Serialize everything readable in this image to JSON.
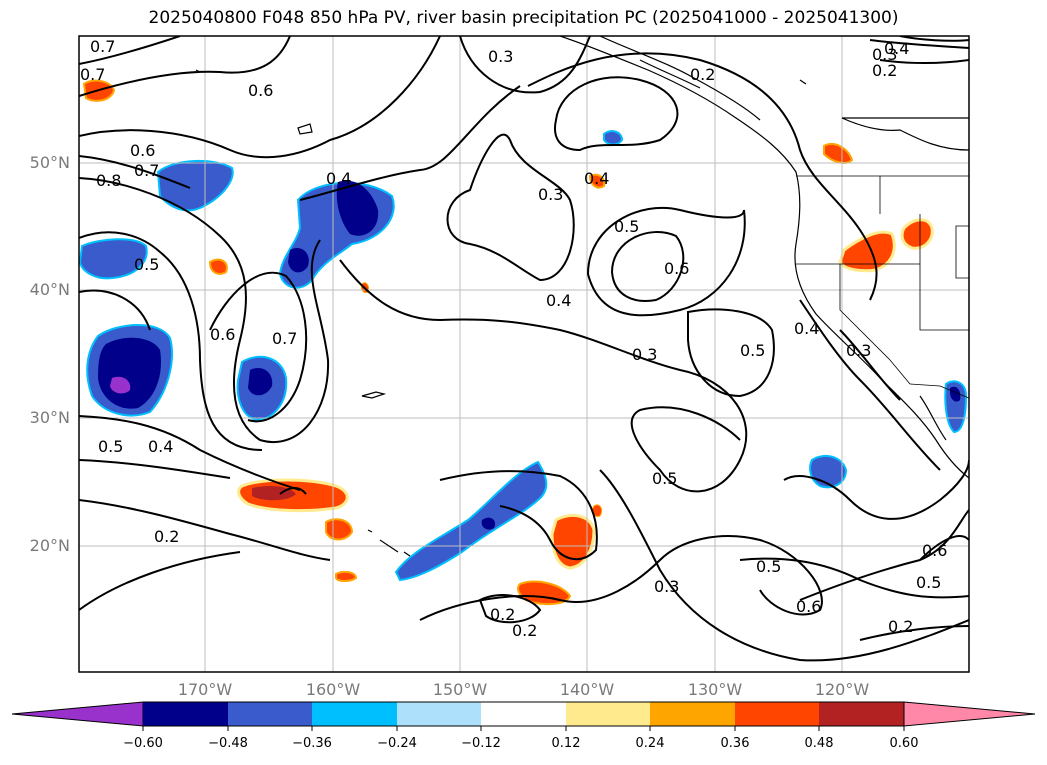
{
  "title": "2025040800 F048 850 hPa PV, river basin precipitation PC (2025041000 - 2025041300)",
  "lat_labels": [
    "50°N",
    "40°N",
    "30°N",
    "20°N"
  ],
  "lon_labels": [
    "170°W",
    "160°W",
    "150°W",
    "140°W",
    "130°W",
    "120°W"
  ],
  "contour_labels": [
    "0.7",
    "0.7",
    "0.6",
    "0.6",
    "0.7",
    "0.8",
    "0.5",
    "0.4",
    "0.6",
    "0.7",
    "0.3",
    "0.3",
    "0.4",
    "0.5",
    "0.6",
    "0.4",
    "0.3",
    "0.5",
    "0.4",
    "0.3",
    "0.2",
    "0.4",
    "0.3",
    "0.2",
    "0.5",
    "0.4",
    "0.5",
    "0.2",
    "0.2",
    "0.3",
    "0.5",
    "0.6",
    "0.5",
    "0.6",
    "0.2",
    "0.2"
  ],
  "colorbar": {
    "colors": [
      "#9932CC",
      "#00008B",
      "#3A5BCC",
      "#00BFFF",
      "#ADE0FA",
      "#FFFFFF",
      "#FFEB8E",
      "#FFA500",
      "#FF4500",
      "#B22222",
      "#FF88A8"
    ],
    "tick_labels": [
      "−0.60",
      "−0.48",
      "−0.36",
      "−0.24",
      "−0.12",
      "0.12",
      "0.24",
      "0.36",
      "0.48",
      "0.60"
    ]
  }
}
